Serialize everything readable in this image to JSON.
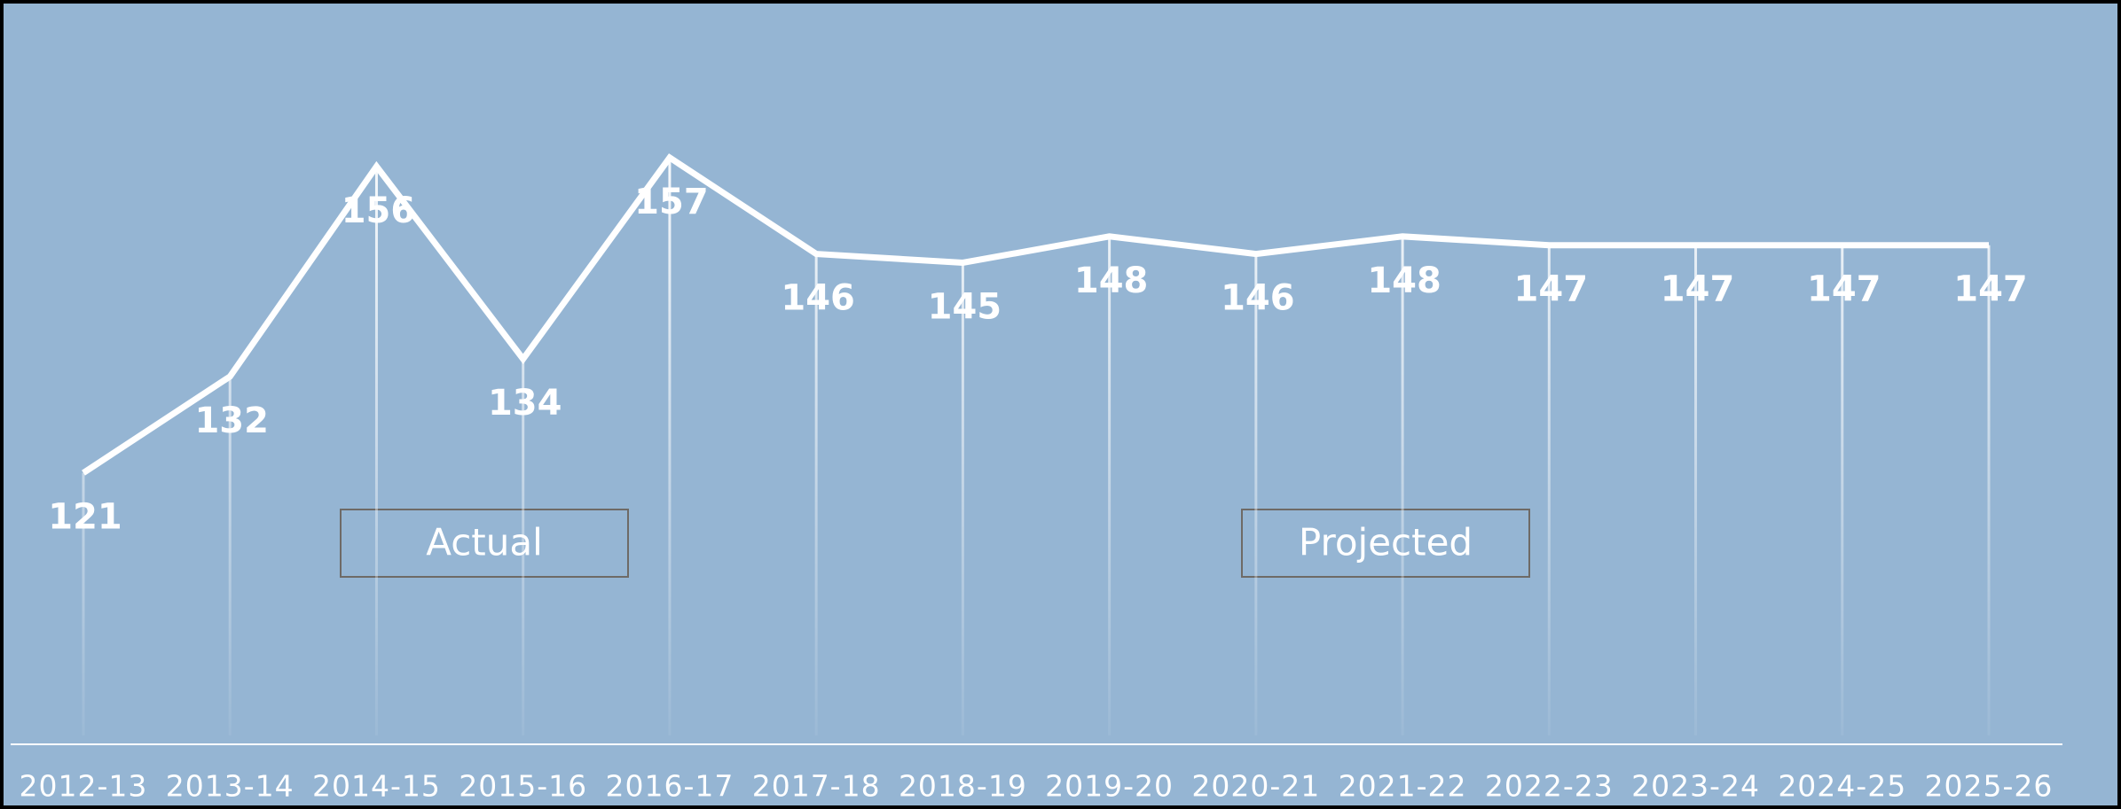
{
  "chart_data": {
    "type": "line",
    "categories": [
      "2012-13",
      "2013-14",
      "2014-15",
      "2015-16",
      "2016-17",
      "2017-18",
      "2018-19",
      "2019-20",
      "2020-21",
      "2021-22",
      "2022-23",
      "2023-24",
      "2024-25",
      "2025-26"
    ],
    "values": [
      121,
      132,
      156,
      134,
      157,
      146,
      145,
      148,
      146,
      148,
      147,
      147,
      147,
      147
    ],
    "color": "#ffffff",
    "ylim": [
      90,
      175
    ],
    "annotations": [
      "Actual",
      "Projected"
    ]
  }
}
